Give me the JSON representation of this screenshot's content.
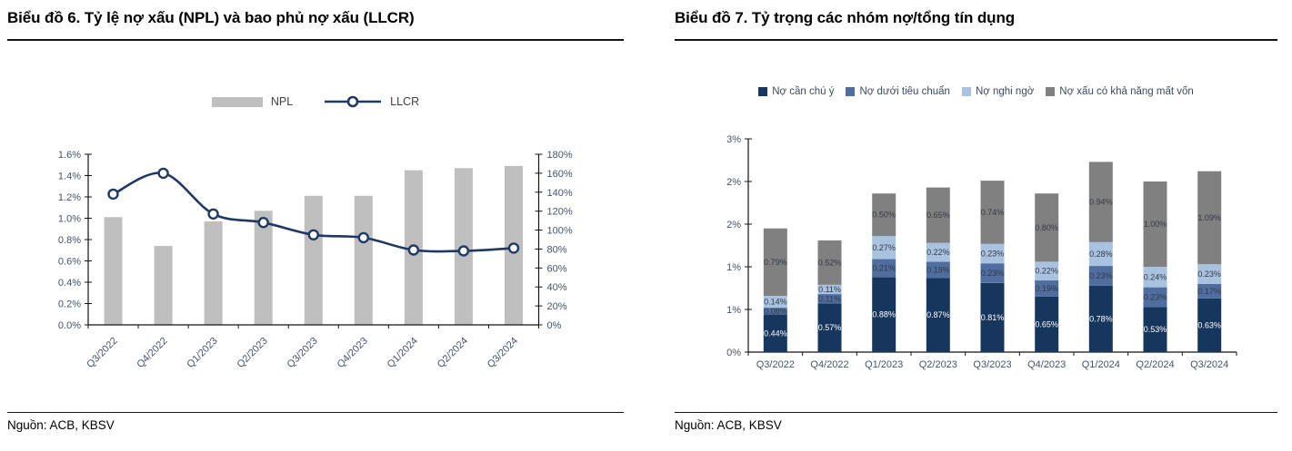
{
  "panels": {
    "left": {
      "title": "Biểu đồ 6. Tỷ lệ nợ xấu (NPL) và bao phủ nợ xấu (LLCR)",
      "source": "Nguồn: ACB, KBSV"
    },
    "right": {
      "title": "Biểu đồ 7. Tỷ trọng các nhóm nợ/tổng tín dụng",
      "source": "Nguồn: ACB, KBSV"
    }
  },
  "colors": {
    "npl_bar": "#bfbfbf",
    "llcr_line": "#1f3864",
    "axis": "#141414",
    "tick_label": "#44546a",
    "legend1_text": "#404040",
    "legend2_text": "#3b4a63",
    "stack": [
      "#17365d",
      "#4f6d9e",
      "#a9c2e0",
      "#808080"
    ],
    "data_label_dark": "#333a45",
    "data_label_light": "#ffffff"
  },
  "chart_data": [
    {
      "type": "bar",
      "subtype": "bar-plus-line-dual-axis",
      "title": "Biểu đồ 6. Tỷ lệ nợ xấu (NPL) và bao phủ nợ xấu (LLCR)",
      "categories": [
        "Q3/2022",
        "Q4/2022",
        "Q1/2023",
        "Q2/2023",
        "Q3/2023",
        "Q4/2023",
        "Q1/2024",
        "Q2/2024",
        "Q3/2024"
      ],
      "series": [
        {
          "name": "NPL",
          "type": "bar",
          "axis": "left",
          "unit": "%",
          "color": "#bfbfbf",
          "values": [
            1.01,
            0.74,
            0.97,
            1.07,
            1.21,
            1.21,
            1.45,
            1.47,
            1.49
          ]
        },
        {
          "name": "LLCR",
          "type": "line",
          "axis": "right",
          "unit": "%",
          "color": "#1f3864",
          "marker": "circle",
          "values": [
            138,
            160,
            117,
            108,
            95,
            92,
            79,
            78,
            81
          ]
        }
      ],
      "left_axis": {
        "min": 0,
        "max": 1.6,
        "step": 0.2,
        "tick_labels": [
          "0.0%",
          "0.2%",
          "0.4%",
          "0.6%",
          "0.8%",
          "1.0%",
          "1.2%",
          "1.4%",
          "1.6%"
        ]
      },
      "right_axis": {
        "min": 0,
        "max": 180,
        "step": 20,
        "tick_labels": [
          "0%",
          "20%",
          "40%",
          "60%",
          "80%",
          "100%",
          "120%",
          "140%",
          "160%",
          "180%"
        ]
      },
      "legend_position": "top",
      "grid": false
    },
    {
      "type": "bar",
      "subtype": "stacked-bar",
      "title": "Biểu đồ 7. Tỷ trọng các nhóm nợ/tổng tín dụng",
      "categories": [
        "Q3/2022",
        "Q4/2022",
        "Q1/2023",
        "Q2/2023",
        "Q3/2023",
        "Q4/2023",
        "Q1/2024",
        "Q2/2024",
        "Q3/2024"
      ],
      "series": [
        {
          "name": "Nợ cần chú ý",
          "color": "#17365d",
          "values": [
            0.44,
            0.57,
            0.88,
            0.87,
            0.81,
            0.65,
            0.78,
            0.53,
            0.63
          ]
        },
        {
          "name": "Nợ dưới tiêu chuẩn",
          "color": "#4f6d9e",
          "values": [
            0.08,
            0.11,
            0.21,
            0.19,
            0.23,
            0.19,
            0.23,
            0.23,
            0.17
          ]
        },
        {
          "name": "Nợ nghi ngờ",
          "color": "#a9c2e0",
          "values": [
            0.14,
            0.11,
            0.27,
            0.22,
            0.23,
            0.22,
            0.28,
            0.24,
            0.23
          ]
        },
        {
          "name": "Nợ xấu có khả năng mất vốn",
          "color": "#808080",
          "values": [
            0.79,
            0.52,
            0.5,
            0.65,
            0.74,
            0.8,
            0.94,
            1.0,
            1.09
          ]
        }
      ],
      "y_axis": {
        "min": 0,
        "max": 2.5,
        "step": 0.5,
        "tick_labels": [
          "0%",
          "1%",
          "1%",
          "2%",
          "2%",
          "3%"
        ]
      },
      "unit": "%",
      "data_labels": true,
      "legend_position": "top",
      "grid": false
    }
  ]
}
